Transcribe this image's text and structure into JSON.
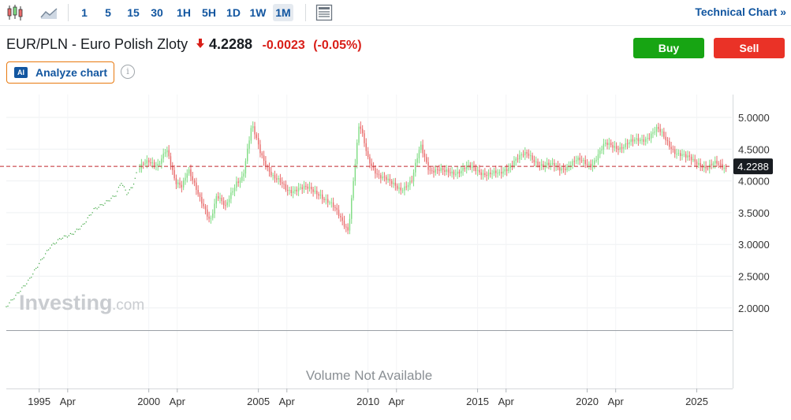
{
  "toolbar": {
    "chart_type_icons": [
      "candlestick-icon",
      "area-chart-icon"
    ],
    "timeframes": [
      {
        "label": "1",
        "active": false
      },
      {
        "label": "5",
        "active": false
      },
      {
        "label": "15",
        "active": false
      },
      {
        "label": "30",
        "active": false
      },
      {
        "label": "1H",
        "active": false
      },
      {
        "label": "5H",
        "active": false
      },
      {
        "label": "1D",
        "active": false
      },
      {
        "label": "1W",
        "active": false
      },
      {
        "label": "1M",
        "active": true
      }
    ],
    "layout_icon": "layout-icon",
    "technical_chart_label": "Technical Chart",
    "technical_chart_chevron": "»"
  },
  "header": {
    "instrument": "EUR/PLN - Euro Polish Zloty",
    "direction_icon": "arrow-down-icon",
    "price": "4.2288",
    "change": "-0.0023",
    "change_pct": "(-0.05%)",
    "change_color": "#d91e18"
  },
  "actions": {
    "buy_label": "Buy",
    "sell_label": "Sell",
    "buy_color": "#17a513",
    "sell_color": "#ea3227"
  },
  "analyze": {
    "badge": "AI",
    "label": "Analyze chart",
    "info_glyph": "i"
  },
  "chart_data": {
    "type": "candlestick",
    "instrument": "EUR/PLN",
    "interval": "1M",
    "y_ticks": [
      "5.0000",
      "4.5000",
      "4.0000",
      "3.5000",
      "3.0000",
      "2.5000",
      "2.0000"
    ],
    "ylim": [
      1.65,
      5.36
    ],
    "x_ticks": [
      "1995",
      "Apr",
      "2000",
      "Apr",
      "2005",
      "Apr",
      "2010",
      "Apr",
      "2015",
      "Apr",
      "2020",
      "Apr",
      "2025"
    ],
    "x_start_year": 1993,
    "x_end_year": 2026.1,
    "current_price": "4.2288",
    "current_price_value": 4.2288,
    "up_color": "#7fdc83",
    "down_color": "#e86a6a",
    "early_series_color": "#3aa53e",
    "volume_text": "Volume Not Available",
    "watermark_main": "Investing",
    "watermark_suffix": ".com",
    "early_series": [
      {
        "t": 1993.0,
        "v": 2.02
      },
      {
        "t": 1993.5,
        "v": 2.22
      },
      {
        "t": 1994.0,
        "v": 2.42
      },
      {
        "t": 1994.5,
        "v": 2.7
      },
      {
        "t": 1995.0,
        "v": 2.96
      },
      {
        "t": 1995.5,
        "v": 3.1
      },
      {
        "t": 1996.0,
        "v": 3.16
      },
      {
        "t": 1996.5,
        "v": 3.3
      },
      {
        "t": 1997.0,
        "v": 3.55
      },
      {
        "t": 1997.5,
        "v": 3.65
      },
      {
        "t": 1998.0,
        "v": 3.78
      },
      {
        "t": 1998.25,
        "v": 3.98
      },
      {
        "t": 1998.5,
        "v": 3.8
      },
      {
        "t": 1998.75,
        "v": 3.9
      },
      {
        "t": 1999.0,
        "v": 4.18
      }
    ],
    "anchors": [
      {
        "t": 1999.0,
        "v": 4.18
      },
      {
        "t": 1999.5,
        "v": 4.28
      },
      {
        "t": 1999.9,
        "v": 4.28
      },
      {
        "t": 2000.3,
        "v": 4.5
      },
      {
        "t": 2000.7,
        "v": 3.95
      },
      {
        "t": 2001.0,
        "v": 3.95
      },
      {
        "t": 2001.3,
        "v": 4.22
      },
      {
        "t": 2001.8,
        "v": 3.7
      },
      {
        "t": 2002.3,
        "v": 3.4
      },
      {
        "t": 2002.6,
        "v": 3.8
      },
      {
        "t": 2003.0,
        "v": 3.55
      },
      {
        "t": 2003.5,
        "v": 4.0
      },
      {
        "t": 2003.8,
        "v": 4.1
      },
      {
        "t": 2004.2,
        "v": 4.85
      },
      {
        "t": 2004.6,
        "v": 4.45
      },
      {
        "t": 2005.2,
        "v": 4.05
      },
      {
        "t": 2005.8,
        "v": 3.85
      },
      {
        "t": 2006.3,
        "v": 3.9
      },
      {
        "t": 2006.8,
        "v": 3.85
      },
      {
        "t": 2007.3,
        "v": 3.82
      },
      {
        "t": 2007.8,
        "v": 3.62
      },
      {
        "t": 2008.6,
        "v": 3.25
      },
      {
        "t": 2009.1,
        "v": 4.88
      },
      {
        "t": 2009.5,
        "v": 4.35
      },
      {
        "t": 2010.0,
        "v": 4.1
      },
      {
        "t": 2010.5,
        "v": 3.95
      },
      {
        "t": 2011.0,
        "v": 3.9
      },
      {
        "t": 2011.5,
        "v": 3.98
      },
      {
        "t": 2011.9,
        "v": 4.55
      },
      {
        "t": 2012.3,
        "v": 4.2
      },
      {
        "t": 2013.0,
        "v": 4.12
      },
      {
        "t": 2014.0,
        "v": 4.2
      },
      {
        "t": 2014.7,
        "v": 4.15
      },
      {
        "t": 2015.5,
        "v": 4.08
      },
      {
        "t": 2016.2,
        "v": 4.35
      },
      {
        "t": 2016.8,
        "v": 4.4
      },
      {
        "t": 2017.5,
        "v": 4.25
      },
      {
        "t": 2018.2,
        "v": 4.2
      },
      {
        "t": 2019.0,
        "v": 4.3
      },
      {
        "t": 2019.7,
        "v": 4.28
      },
      {
        "t": 2020.3,
        "v": 4.55
      },
      {
        "t": 2021.0,
        "v": 4.55
      },
      {
        "t": 2021.6,
        "v": 4.6
      },
      {
        "t": 2022.2,
        "v": 4.7
      },
      {
        "t": 2022.7,
        "v": 4.8
      },
      {
        "t": 2023.2,
        "v": 4.6
      },
      {
        "t": 2023.6,
        "v": 4.45
      },
      {
        "t": 2024.0,
        "v": 4.35
      },
      {
        "t": 2024.6,
        "v": 4.3
      },
      {
        "t": 2025.0,
        "v": 4.2
      },
      {
        "t": 2025.4,
        "v": 4.26
      },
      {
        "t": 2025.8,
        "v": 4.23
      }
    ]
  }
}
